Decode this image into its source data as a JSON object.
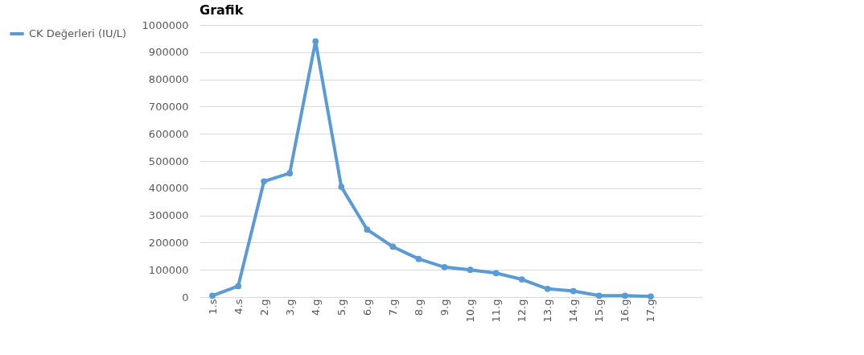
{
  "chart_data": {
    "type": "line",
    "title": "Grafik",
    "categories": [
      "1.s",
      "4.s",
      "2.g",
      "3.g",
      "4.g",
      "5.g",
      "6.g",
      "7.g",
      "8.g",
      "9.g",
      "10.g",
      "11.g",
      "12.g",
      "13.g",
      "14.g",
      "15.g",
      "16.g",
      "17.g"
    ],
    "series": [
      {
        "name": "CK Değerleri (IU/L)",
        "color": "#5b9bd5",
        "values": [
          5000,
          40000,
          425000,
          455000,
          940000,
          405000,
          248000,
          185000,
          140000,
          110000,
          100000,
          88000,
          65000,
          30000,
          22000,
          5000,
          5000,
          2000
        ]
      }
    ],
    "ylim": [
      0,
      1000000
    ],
    "yticks": [
      0,
      100000,
      200000,
      300000,
      400000,
      500000,
      600000,
      700000,
      800000,
      900000,
      1000000
    ],
    "grid": "y",
    "legend": "left",
    "marker": "circle",
    "line_style": "solid"
  }
}
